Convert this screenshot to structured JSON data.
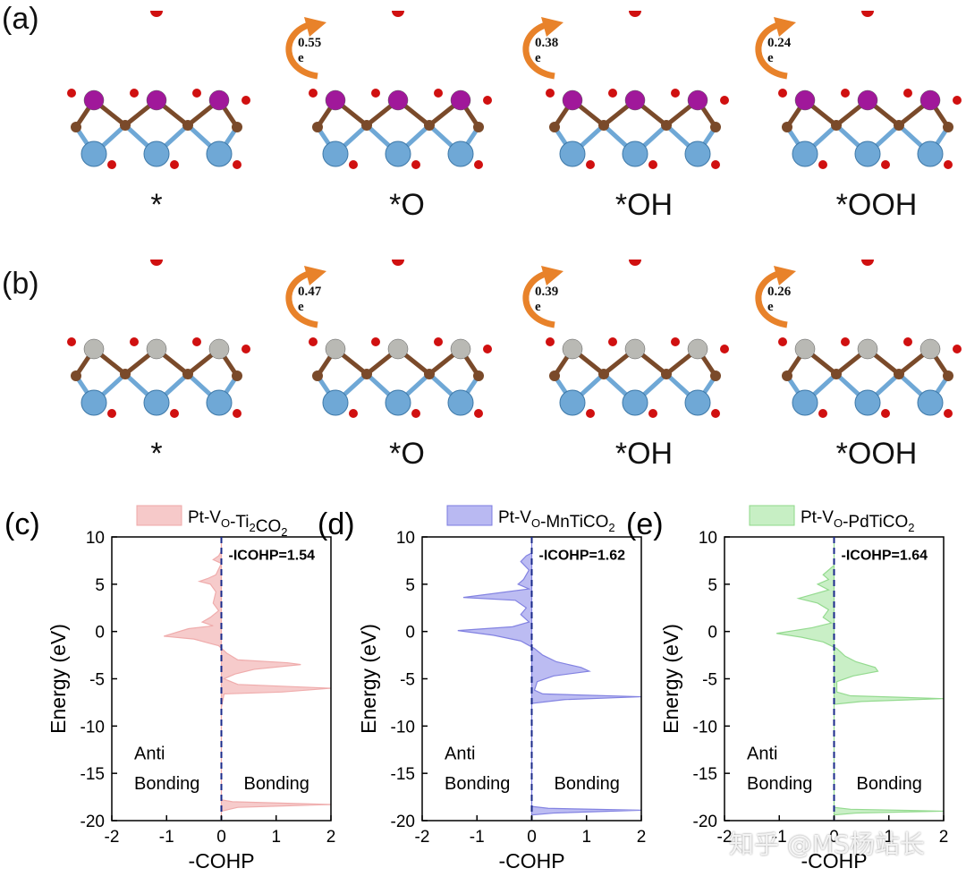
{
  "panels_top": {
    "a": {
      "label": "(a)",
      "structures": [
        {
          "label": "*",
          "charge": ""
        },
        {
          "label": "*O",
          "charge": "0.55 e"
        },
        {
          "label": "*OH",
          "charge": "0.38 e"
        },
        {
          "label": "*OOH",
          "charge": "0.24 e"
        }
      ],
      "metal_color": "#a0189a"
    },
    "b": {
      "label": "(b)",
      "structures": [
        {
          "label": "*",
          "charge": ""
        },
        {
          "label": "*O",
          "charge": "0.47 e"
        },
        {
          "label": "*OH",
          "charge": "0.39 e"
        },
        {
          "label": "*OOH",
          "charge": "0.26 e"
        }
      ],
      "metal_color": "#b9b9b4"
    }
  },
  "colors": {
    "ti": "#6fa8d6",
    "c": "#7a4a2a",
    "o": "#d01010",
    "isosurface_yellow": "#e8d21a",
    "isosurface_cyan": "#1fb9c9",
    "arrow": "#e8822a"
  },
  "watermark": "知乎 @MS杨站长",
  "chart_data": [
    {
      "type": "area",
      "panel": "(c)",
      "legend": "Pt-V_O-Ti2CO2",
      "legend_parts": {
        "pre": "Pt-V",
        "sub1": "O",
        "mid": "-Ti",
        "sub2": "2",
        "mid2": "CO",
        "sub3": "2"
      },
      "color": "#f6c9c9",
      "edge": "#efa8a8",
      "annotation": "-ICOHP=1.54",
      "xlabel": "-COHP",
      "ylabel": "Energy (eV)",
      "xlim": [
        -2,
        2
      ],
      "ylim": [
        -20,
        10
      ],
      "xticks": [
        -2,
        -1,
        0,
        1,
        2
      ],
      "yticks": [
        10,
        5,
        0,
        -5,
        -10,
        -15,
        -20
      ],
      "text_left": [
        "Anti",
        "Bonding"
      ],
      "text_right": "Bonding",
      "points": [
        [
          0,
          10
        ],
        [
          0,
          8.5
        ],
        [
          -0.05,
          8
        ],
        [
          -0.15,
          7.6
        ],
        [
          0,
          7.2
        ],
        [
          -0.1,
          6
        ],
        [
          -0.25,
          5.6
        ],
        [
          -0.4,
          5.3
        ],
        [
          -0.2,
          5
        ],
        [
          -0.1,
          4.2
        ],
        [
          -0.15,
          3
        ],
        [
          -0.05,
          2.2
        ],
        [
          -0.2,
          1.5
        ],
        [
          -0.35,
          1
        ],
        [
          -0.15,
          0.6
        ],
        [
          -0.6,
          0.3
        ],
        [
          -1.05,
          -0.5
        ],
        [
          -0.5,
          -0.8
        ],
        [
          -0.25,
          -1.2
        ],
        [
          -0.05,
          -1.5
        ],
        [
          0.1,
          -2.3
        ],
        [
          0.3,
          -3
        ],
        [
          1.2,
          -3.3
        ],
        [
          1.45,
          -3.5
        ],
        [
          0.6,
          -4
        ],
        [
          0.25,
          -4.5
        ],
        [
          0.05,
          -5
        ],
        [
          0.3,
          -5.6
        ],
        [
          2,
          -6
        ],
        [
          1.1,
          -6.4
        ],
        [
          0.05,
          -6.6
        ],
        [
          0,
          -8
        ],
        [
          0,
          -17.8
        ],
        [
          0.2,
          -18
        ],
        [
          2,
          -18.3
        ],
        [
          0.3,
          -18.6
        ],
        [
          0,
          -19
        ],
        [
          0,
          -20
        ]
      ]
    },
    {
      "type": "area",
      "panel": "(d)",
      "legend": "Pt-V_O-MnTiCO2",
      "legend_parts": {
        "pre": "Pt-V",
        "sub1": "O",
        "mid": "-MnTiCO",
        "sub2": "2",
        "mid2": "",
        "sub3": ""
      },
      "color": "#b9b9f2",
      "edge": "#7c7ce0",
      "annotation": "-ICOHP=1.62",
      "xlabel": "-COHP",
      "ylabel": "Energy (eV)",
      "xlim": [
        -2,
        2
      ],
      "ylim": [
        -20,
        10
      ],
      "xticks": [
        -2,
        -1,
        0,
        1,
        2
      ],
      "yticks": [
        10,
        5,
        0,
        -5,
        -10,
        -15,
        -20
      ],
      "text_left": [
        "Anti",
        "Bonding"
      ],
      "text_right": "Bonding",
      "points": [
        [
          0,
          10
        ],
        [
          0,
          8.3
        ],
        [
          -0.1,
          8
        ],
        [
          -0.2,
          7.4
        ],
        [
          -0.05,
          6.5
        ],
        [
          -0.15,
          5.5
        ],
        [
          -0.25,
          5
        ],
        [
          -0.05,
          4.5
        ],
        [
          -1.25,
          3.6
        ],
        [
          -0.3,
          3.3
        ],
        [
          -0.1,
          2.5
        ],
        [
          -0.2,
          1.8
        ],
        [
          -0.05,
          1
        ],
        [
          -0.35,
          0.5
        ],
        [
          -1.35,
          0.1
        ],
        [
          -0.7,
          -0.4
        ],
        [
          -0.2,
          -1
        ],
        [
          0.05,
          -1.8
        ],
        [
          0.2,
          -2.5
        ],
        [
          0.45,
          -3.2
        ],
        [
          0.9,
          -3.8
        ],
        [
          1.05,
          -4.2
        ],
        [
          0.4,
          -4.7
        ],
        [
          0.1,
          -5.3
        ],
        [
          0.05,
          -6.2
        ],
        [
          0.2,
          -6.6
        ],
        [
          2,
          -6.9
        ],
        [
          0.6,
          -7.2
        ],
        [
          0,
          -7.6
        ],
        [
          0,
          -18.5
        ],
        [
          0.3,
          -18.7
        ],
        [
          2,
          -18.9
        ],
        [
          0.4,
          -19.2
        ],
        [
          0,
          -19.4
        ],
        [
          0,
          -20
        ]
      ]
    },
    {
      "type": "area",
      "panel": "(e)",
      "legend": "Pt-V_O-PdTiCO2",
      "legend_parts": {
        "pre": "Pt-V",
        "sub1": "O",
        "mid": "-PdTiCO",
        "sub2": "2",
        "mid2": "",
        "sub3": ""
      },
      "color": "#c7efc4",
      "edge": "#8fd98a",
      "annotation": "-ICOHP=1.64",
      "xlabel": "-COHP",
      "ylabel": "Energy (eV)",
      "xlim": [
        -2,
        2
      ],
      "ylim": [
        -20,
        10
      ],
      "xticks": [
        -2,
        -1,
        0,
        1,
        2
      ],
      "yticks": [
        10,
        5,
        0,
        -5,
        -10,
        -15,
        -20
      ],
      "text_left": [
        "Anti",
        "Bonding"
      ],
      "text_right": "Bonding",
      "points": [
        [
          0,
          10
        ],
        [
          0,
          7
        ],
        [
          -0.1,
          6.5
        ],
        [
          -0.2,
          6
        ],
        [
          -0.1,
          5.5
        ],
        [
          -0.3,
          5
        ],
        [
          -0.1,
          4.4
        ],
        [
          -0.65,
          3.5
        ],
        [
          -0.3,
          3
        ],
        [
          -0.1,
          2.3
        ],
        [
          -0.2,
          1.5
        ],
        [
          -0.05,
          0.9
        ],
        [
          -0.4,
          0.4
        ],
        [
          -1.05,
          -0.2
        ],
        [
          -0.6,
          -0.6
        ],
        [
          -0.2,
          -1.1
        ],
        [
          0.05,
          -1.8
        ],
        [
          0.2,
          -2.6
        ],
        [
          0.4,
          -3.2
        ],
        [
          0.75,
          -3.8
        ],
        [
          0.8,
          -4.2
        ],
        [
          0.35,
          -4.7
        ],
        [
          0.05,
          -5.3
        ],
        [
          0.05,
          -6.4
        ],
        [
          0.3,
          -6.8
        ],
        [
          2,
          -7.1
        ],
        [
          0.5,
          -7.4
        ],
        [
          0,
          -7.7
        ],
        [
          0,
          -18.6
        ],
        [
          0.3,
          -18.8
        ],
        [
          2,
          -19
        ],
        [
          0.4,
          -19.2
        ],
        [
          0,
          -19.4
        ],
        [
          0,
          -20
        ]
      ]
    }
  ]
}
